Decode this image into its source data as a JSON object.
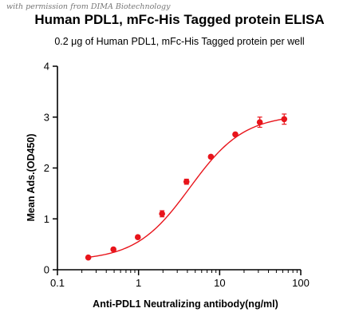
{
  "watermark": "with permission from DIMA Biotechnology",
  "chart_data": {
    "type": "line",
    "title": "Human PDL1,  mFc-His Tagged protein ELISA",
    "subtitle": "0.2 μg of Human PDL1, mFc-His Tagged protein per well",
    "xlabel": "Anti-PDL1 Neutralizing antibody(ng/ml)",
    "ylabel": "Mean Ads.(OD450)",
    "xscale": "log",
    "xlim": [
      0.1,
      100
    ],
    "ylim": [
      0,
      4
    ],
    "xticks": [
      "0.1",
      "1",
      "10",
      "100"
    ],
    "yticks": [
      "0",
      "1",
      "2",
      "3",
      "4"
    ],
    "grid": false,
    "colors": {
      "series": "#e8141b",
      "axis": "#000000"
    },
    "series": [
      {
        "x": [
          0.24,
          0.49,
          0.98,
          1.95,
          3.9,
          7.8,
          15.6,
          31.25,
          62.5
        ],
        "y": [
          0.24,
          0.4,
          0.64,
          1.1,
          1.73,
          2.22,
          2.66,
          2.9,
          2.96
        ],
        "error": [
          0.02,
          0.03,
          0.03,
          0.06,
          0.05,
          0.03,
          0.03,
          0.1,
          0.1
        ],
        "fit": {
          "bottom": 0.18,
          "top": 3.05,
          "ec50": 4.3,
          "hill": 1.3
        }
      }
    ]
  }
}
